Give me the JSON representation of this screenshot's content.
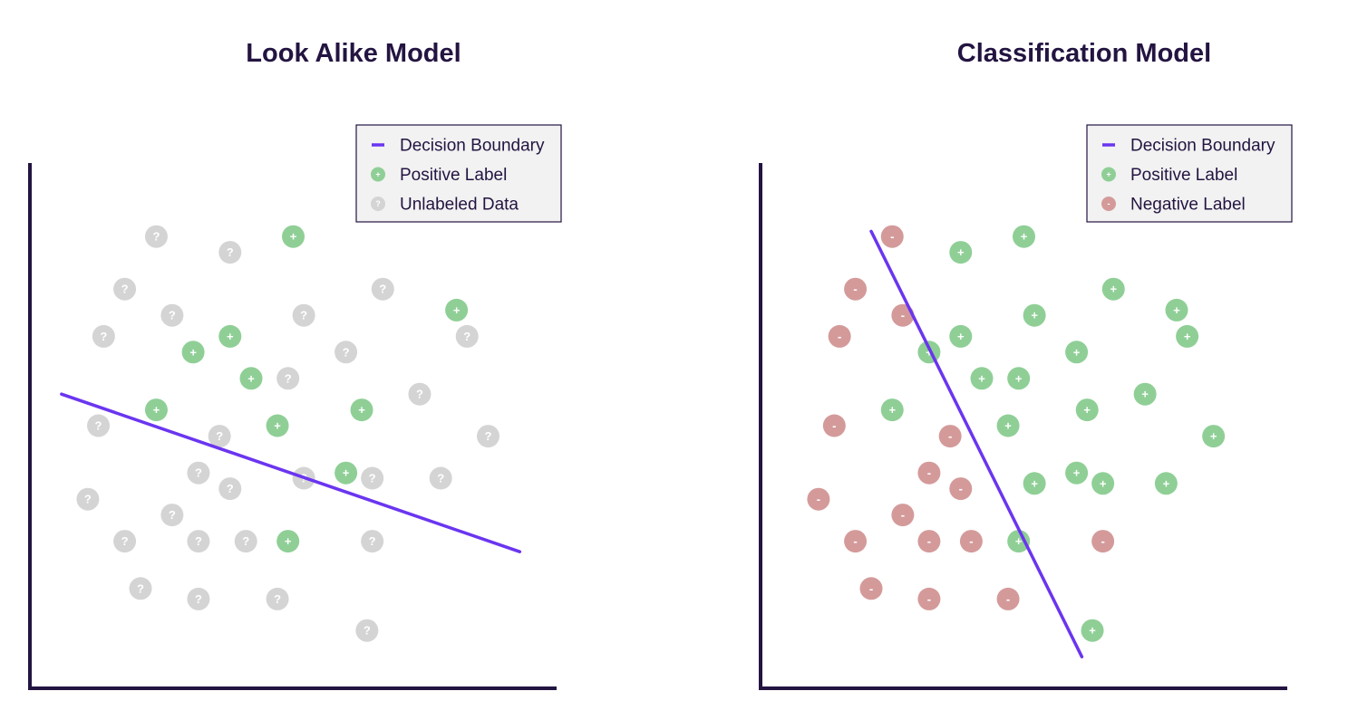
{
  "colors": {
    "axis": "#231441",
    "boundary": "#6a35f0",
    "positive": "#8fcf96",
    "negative": "#d49a9a",
    "unlabeled": "#d4d4d4",
    "legend_bg": "#f2f2f2",
    "legend_border": "#231441",
    "title": "#231441"
  },
  "panels": [
    {
      "title": "Look Alike Model",
      "legend": [
        {
          "kind": "line",
          "label": "Decision Boundary"
        },
        {
          "kind": "positive",
          "label": "Positive Label",
          "symbol": "+"
        },
        {
          "kind": "unlabeled",
          "label": "Unlabeled Data",
          "symbol": "?"
        }
      ],
      "boundary": [
        [
          0.06,
          0.56
        ],
        [
          0.93,
          0.26
        ]
      ],
      "points": [
        {
          "x": 0.24,
          "y": 0.86,
          "c": "unlabeled",
          "s": "?"
        },
        {
          "x": 0.38,
          "y": 0.83,
          "c": "unlabeled",
          "s": "?"
        },
        {
          "x": 0.5,
          "y": 0.86,
          "c": "positive",
          "s": "+"
        },
        {
          "x": 0.18,
          "y": 0.76,
          "c": "unlabeled",
          "s": "?"
        },
        {
          "x": 0.67,
          "y": 0.76,
          "c": "unlabeled",
          "s": "?"
        },
        {
          "x": 0.81,
          "y": 0.72,
          "c": "positive",
          "s": "+"
        },
        {
          "x": 0.27,
          "y": 0.71,
          "c": "unlabeled",
          "s": "?"
        },
        {
          "x": 0.52,
          "y": 0.71,
          "c": "unlabeled",
          "s": "?"
        },
        {
          "x": 0.14,
          "y": 0.67,
          "c": "unlabeled",
          "s": "?"
        },
        {
          "x": 0.38,
          "y": 0.67,
          "c": "positive",
          "s": "+"
        },
        {
          "x": 0.83,
          "y": 0.67,
          "c": "unlabeled",
          "s": "?"
        },
        {
          "x": 0.31,
          "y": 0.64,
          "c": "positive",
          "s": "+"
        },
        {
          "x": 0.6,
          "y": 0.64,
          "c": "unlabeled",
          "s": "?"
        },
        {
          "x": 0.42,
          "y": 0.59,
          "c": "positive",
          "s": "+"
        },
        {
          "x": 0.49,
          "y": 0.59,
          "c": "unlabeled",
          "s": "?"
        },
        {
          "x": 0.74,
          "y": 0.56,
          "c": "unlabeled",
          "s": "?"
        },
        {
          "x": 0.24,
          "y": 0.53,
          "c": "positive",
          "s": "+"
        },
        {
          "x": 0.63,
          "y": 0.53,
          "c": "positive",
          "s": "+"
        },
        {
          "x": 0.13,
          "y": 0.5,
          "c": "unlabeled",
          "s": "?"
        },
        {
          "x": 0.47,
          "y": 0.5,
          "c": "positive",
          "s": "+"
        },
        {
          "x": 0.36,
          "y": 0.48,
          "c": "unlabeled",
          "s": "?"
        },
        {
          "x": 0.87,
          "y": 0.48,
          "c": "unlabeled",
          "s": "?"
        },
        {
          "x": 0.32,
          "y": 0.41,
          "c": "unlabeled",
          "s": "?"
        },
        {
          "x": 0.6,
          "y": 0.41,
          "c": "positive",
          "s": "+"
        },
        {
          "x": 0.52,
          "y": 0.4,
          "c": "unlabeled",
          "s": "?"
        },
        {
          "x": 0.65,
          "y": 0.4,
          "c": "unlabeled",
          "s": "?"
        },
        {
          "x": 0.78,
          "y": 0.4,
          "c": "unlabeled",
          "s": "?"
        },
        {
          "x": 0.11,
          "y": 0.36,
          "c": "unlabeled",
          "s": "?"
        },
        {
          "x": 0.38,
          "y": 0.38,
          "c": "unlabeled",
          "s": "?"
        },
        {
          "x": 0.27,
          "y": 0.33,
          "c": "unlabeled",
          "s": "?"
        },
        {
          "x": 0.18,
          "y": 0.28,
          "c": "unlabeled",
          "s": "?"
        },
        {
          "x": 0.32,
          "y": 0.28,
          "c": "unlabeled",
          "s": "?"
        },
        {
          "x": 0.41,
          "y": 0.28,
          "c": "unlabeled",
          "s": "?"
        },
        {
          "x": 0.49,
          "y": 0.28,
          "c": "positive",
          "s": "+"
        },
        {
          "x": 0.65,
          "y": 0.28,
          "c": "unlabeled",
          "s": "?"
        },
        {
          "x": 0.21,
          "y": 0.19,
          "c": "unlabeled",
          "s": "?"
        },
        {
          "x": 0.32,
          "y": 0.17,
          "c": "unlabeled",
          "s": "?"
        },
        {
          "x": 0.47,
          "y": 0.17,
          "c": "unlabeled",
          "s": "?"
        },
        {
          "x": 0.64,
          "y": 0.11,
          "c": "unlabeled",
          "s": "?"
        }
      ]
    },
    {
      "title": "Classification Model",
      "legend": [
        {
          "kind": "line",
          "label": "Decision Boundary"
        },
        {
          "kind": "positive",
          "label": "Positive Label",
          "symbol": "+"
        },
        {
          "kind": "negative",
          "label": "Negative Label",
          "symbol": "-"
        }
      ],
      "boundary": [
        [
          0.21,
          0.87
        ],
        [
          0.61,
          0.06
        ]
      ],
      "points": [
        {
          "x": 0.25,
          "y": 0.86,
          "c": "negative",
          "s": "-"
        },
        {
          "x": 0.38,
          "y": 0.83,
          "c": "positive",
          "s": "+"
        },
        {
          "x": 0.5,
          "y": 0.86,
          "c": "positive",
          "s": "+"
        },
        {
          "x": 0.18,
          "y": 0.76,
          "c": "negative",
          "s": "-"
        },
        {
          "x": 0.67,
          "y": 0.76,
          "c": "positive",
          "s": "+"
        },
        {
          "x": 0.79,
          "y": 0.72,
          "c": "positive",
          "s": "+"
        },
        {
          "x": 0.27,
          "y": 0.71,
          "c": "negative",
          "s": "-"
        },
        {
          "x": 0.52,
          "y": 0.71,
          "c": "positive",
          "s": "+"
        },
        {
          "x": 0.15,
          "y": 0.67,
          "c": "negative",
          "s": "-"
        },
        {
          "x": 0.38,
          "y": 0.67,
          "c": "positive",
          "s": "+"
        },
        {
          "x": 0.81,
          "y": 0.67,
          "c": "positive",
          "s": "+"
        },
        {
          "x": 0.32,
          "y": 0.64,
          "c": "positive",
          "s": "+"
        },
        {
          "x": 0.6,
          "y": 0.64,
          "c": "positive",
          "s": "+"
        },
        {
          "x": 0.42,
          "y": 0.59,
          "c": "positive",
          "s": "+"
        },
        {
          "x": 0.49,
          "y": 0.59,
          "c": "positive",
          "s": "+"
        },
        {
          "x": 0.73,
          "y": 0.56,
          "c": "positive",
          "s": "+"
        },
        {
          "x": 0.25,
          "y": 0.53,
          "c": "positive",
          "s": "+"
        },
        {
          "x": 0.62,
          "y": 0.53,
          "c": "positive",
          "s": "+"
        },
        {
          "x": 0.14,
          "y": 0.5,
          "c": "negative",
          "s": "-"
        },
        {
          "x": 0.47,
          "y": 0.5,
          "c": "positive",
          "s": "+"
        },
        {
          "x": 0.36,
          "y": 0.48,
          "c": "negative",
          "s": "-"
        },
        {
          "x": 0.86,
          "y": 0.48,
          "c": "positive",
          "s": "+"
        },
        {
          "x": 0.32,
          "y": 0.41,
          "c": "negative",
          "s": "-"
        },
        {
          "x": 0.6,
          "y": 0.41,
          "c": "positive",
          "s": "+"
        },
        {
          "x": 0.52,
          "y": 0.39,
          "c": "positive",
          "s": "+"
        },
        {
          "x": 0.65,
          "y": 0.39,
          "c": "positive",
          "s": "+"
        },
        {
          "x": 0.77,
          "y": 0.39,
          "c": "positive",
          "s": "+"
        },
        {
          "x": 0.11,
          "y": 0.36,
          "c": "negative",
          "s": "-"
        },
        {
          "x": 0.38,
          "y": 0.38,
          "c": "negative",
          "s": "-"
        },
        {
          "x": 0.27,
          "y": 0.33,
          "c": "negative",
          "s": "-"
        },
        {
          "x": 0.18,
          "y": 0.28,
          "c": "negative",
          "s": "-"
        },
        {
          "x": 0.32,
          "y": 0.28,
          "c": "negative",
          "s": "-"
        },
        {
          "x": 0.4,
          "y": 0.28,
          "c": "negative",
          "s": "-"
        },
        {
          "x": 0.49,
          "y": 0.28,
          "c": "positive",
          "s": "+"
        },
        {
          "x": 0.65,
          "y": 0.28,
          "c": "negative",
          "s": "-"
        },
        {
          "x": 0.21,
          "y": 0.19,
          "c": "negative",
          "s": "-"
        },
        {
          "x": 0.32,
          "y": 0.17,
          "c": "negative",
          "s": "-"
        },
        {
          "x": 0.47,
          "y": 0.17,
          "c": "negative",
          "s": "-"
        },
        {
          "x": 0.63,
          "y": 0.11,
          "c": "positive",
          "s": "+"
        }
      ]
    }
  ]
}
